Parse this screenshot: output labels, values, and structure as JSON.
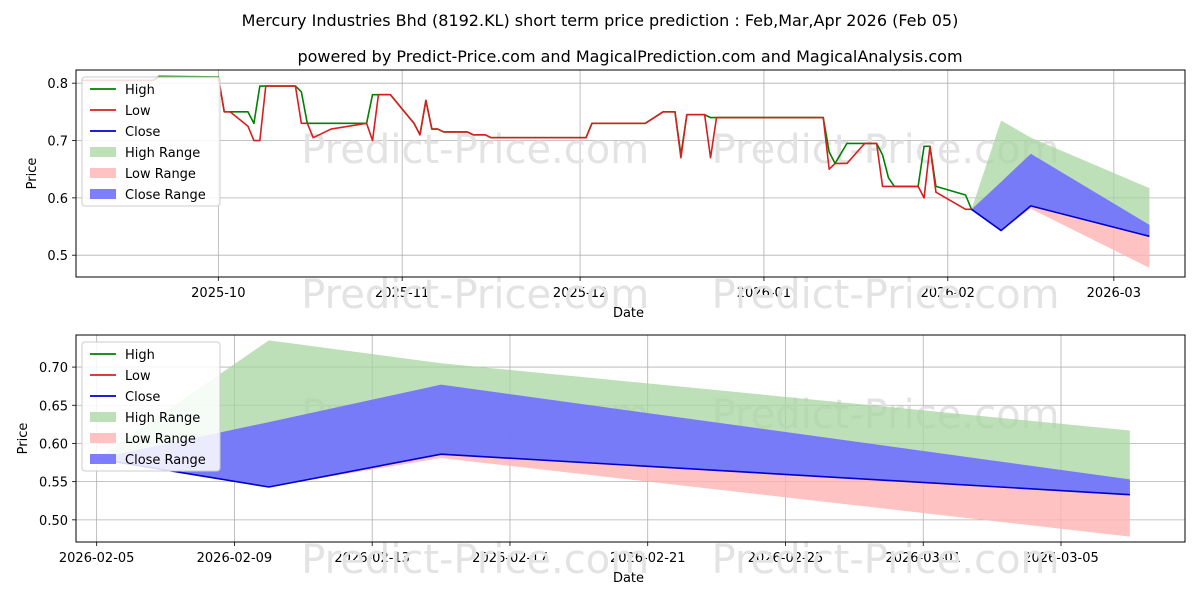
{
  "title": "Mercury Industries Bhd (8192.KL) short term price prediction : Feb,Mar,Apr 2026 (Feb 05)",
  "subtitle": "powered by Predict-Price.com and MagicalPrediction.com and MagicalAnalysis.com",
  "watermark": "Predict-Price.com",
  "colors": {
    "high": "#008000",
    "low": "#d62020",
    "close": "#0000cc",
    "high_range": "#a8d5a0",
    "low_range": "#ffb3b3",
    "close_range": "#7070ff",
    "grid": "#b0b0b0",
    "watermark": "#e3e3e3"
  },
  "chart_data": [
    {
      "type": "line",
      "title": "",
      "xlabel": "Date",
      "ylabel": "Price",
      "xlim": [
        "2025-09-07",
        "2026-03-13"
      ],
      "ylim": [
        0.462,
        0.823
      ],
      "xticks": [
        "2025-10-01",
        "2025-11-01",
        "2025-12-01",
        "2026-01-01",
        "2026-02-01",
        "2026-03-01"
      ],
      "xtick_labels": [
        "2025-10",
        "2025-11",
        "2025-12",
        "2026-01",
        "2026-02",
        "2026-03"
      ],
      "yticks": [
        0.5,
        0.6,
        0.7,
        0.8
      ],
      "ytick_labels": [
        "0.5",
        "0.6",
        "0.7",
        "0.8"
      ],
      "legend": [
        "High",
        "Low",
        "Close",
        "High Range",
        "Low Range",
        "Close Range"
      ],
      "legend_position": "upper-left",
      "series": [
        {
          "name": "High",
          "points": [
            [
              "2025-09-08",
              0.805
            ],
            [
              "2025-09-20",
              0.805
            ],
            [
              "2025-09-21",
              0.812
            ],
            [
              "2025-10-01",
              0.811
            ],
            [
              "2025-10-02",
              0.75
            ],
            [
              "2025-10-06",
              0.75
            ],
            [
              "2025-10-07",
              0.73
            ],
            [
              "2025-10-08",
              0.795
            ],
            [
              "2025-10-14",
              0.795
            ],
            [
              "2025-10-15",
              0.785
            ],
            [
              "2025-10-16",
              0.73
            ],
            [
              "2025-10-26",
              0.73
            ],
            [
              "2025-10-27",
              0.78
            ],
            [
              "2025-10-30",
              0.78
            ],
            [
              "2025-11-03",
              0.73
            ],
            [
              "2025-11-04",
              0.71
            ],
            [
              "2025-11-05",
              0.77
            ],
            [
              "2025-11-06",
              0.72
            ],
            [
              "2025-11-07",
              0.72
            ],
            [
              "2025-11-08",
              0.715
            ],
            [
              "2025-11-12",
              0.715
            ],
            [
              "2025-11-13",
              0.71
            ],
            [
              "2025-11-15",
              0.71
            ],
            [
              "2025-11-16",
              0.705
            ],
            [
              "2025-11-30",
              0.705
            ],
            [
              "2025-12-02",
              0.705
            ],
            [
              "2025-12-03",
              0.73
            ],
            [
              "2025-12-12",
              0.73
            ],
            [
              "2025-12-15",
              0.75
            ],
            [
              "2025-12-17",
              0.75
            ],
            [
              "2025-12-18",
              0.675
            ],
            [
              "2025-12-19",
              0.745
            ],
            [
              "2025-12-22",
              0.745
            ],
            [
              "2025-12-23",
              0.74
            ],
            [
              "2026-01-11",
              0.74
            ],
            [
              "2026-01-12",
              0.68
            ],
            [
              "2026-01-13",
              0.66
            ],
            [
              "2026-01-15",
              0.695
            ],
            [
              "2026-01-20",
              0.695
            ],
            [
              "2026-01-21",
              0.675
            ],
            [
              "2026-01-22",
              0.635
            ],
            [
              "2026-01-23",
              0.62
            ],
            [
              "2026-01-27",
              0.62
            ],
            [
              "2026-01-28",
              0.69
            ],
            [
              "2026-01-29",
              0.69
            ],
            [
              "2026-01-30",
              0.62
            ],
            [
              "2026-02-04",
              0.605
            ],
            [
              "2026-02-05",
              0.58
            ]
          ]
        },
        {
          "name": "Low",
          "points": [
            [
              "2025-09-08",
              0.805
            ],
            [
              "2025-09-20",
              0.805
            ],
            [
              "2025-09-21",
              0.81
            ],
            [
              "2025-10-01",
              0.81
            ],
            [
              "2025-10-02",
              0.75
            ],
            [
              "2025-10-03",
              0.75
            ],
            [
              "2025-10-06",
              0.725
            ],
            [
              "2025-10-07",
              0.7
            ],
            [
              "2025-10-08",
              0.7
            ],
            [
              "2025-10-09",
              0.795
            ],
            [
              "2025-10-14",
              0.795
            ],
            [
              "2025-10-15",
              0.73
            ],
            [
              "2025-10-16",
              0.73
            ],
            [
              "2025-10-17",
              0.705
            ],
            [
              "2025-10-20",
              0.72
            ],
            [
              "2025-10-26",
              0.73
            ],
            [
              "2025-10-27",
              0.7
            ],
            [
              "2025-10-28",
              0.78
            ],
            [
              "2025-10-30",
              0.78
            ],
            [
              "2025-11-03",
              0.73
            ],
            [
              "2025-11-04",
              0.71
            ],
            [
              "2025-11-05",
              0.77
            ],
            [
              "2025-11-06",
              0.72
            ],
            [
              "2025-11-07",
              0.72
            ],
            [
              "2025-11-08",
              0.715
            ],
            [
              "2025-11-12",
              0.715
            ],
            [
              "2025-11-13",
              0.71
            ],
            [
              "2025-11-15",
              0.71
            ],
            [
              "2025-11-16",
              0.705
            ],
            [
              "2025-11-30",
              0.705
            ],
            [
              "2025-12-02",
              0.705
            ],
            [
              "2025-12-03",
              0.73
            ],
            [
              "2025-12-12",
              0.73
            ],
            [
              "2025-12-15",
              0.75
            ],
            [
              "2025-12-17",
              0.75
            ],
            [
              "2025-12-18",
              0.67
            ],
            [
              "2025-12-19",
              0.745
            ],
            [
              "2025-12-22",
              0.745
            ],
            [
              "2025-12-23",
              0.67
            ],
            [
              "2025-12-24",
              0.74
            ],
            [
              "2026-01-11",
              0.74
            ],
            [
              "2026-01-12",
              0.65
            ],
            [
              "2026-01-13",
              0.66
            ],
            [
              "2026-01-15",
              0.66
            ],
            [
              "2026-01-18",
              0.695
            ],
            [
              "2026-01-20",
              0.695
            ],
            [
              "2026-01-21",
              0.62
            ],
            [
              "2026-01-27",
              0.62
            ],
            [
              "2026-01-28",
              0.6
            ],
            [
              "2026-01-29",
              0.69
            ],
            [
              "2026-01-30",
              0.61
            ],
            [
              "2026-02-04",
              0.58
            ],
            [
              "2026-02-05",
              0.58
            ]
          ]
        },
        {
          "name": "Close",
          "points": [
            [
              "2026-02-05",
              0.58
            ],
            [
              "2026-02-10",
              0.543
            ],
            [
              "2026-02-15",
              0.586
            ],
            [
              "2026-03-07",
              0.533
            ]
          ]
        }
      ],
      "ranges": [
        {
          "name": "High Range",
          "upper": [
            [
              "2026-02-05",
              0.58
            ],
            [
              "2026-02-10",
              0.735
            ],
            [
              "2026-02-15",
              0.705
            ],
            [
              "2026-03-07",
              0.617
            ]
          ],
          "lower": [
            [
              "2026-02-05",
              0.58
            ],
            [
              "2026-02-10",
              0.543
            ],
            [
              "2026-02-15",
              0.586
            ],
            [
              "2026-03-07",
              0.533
            ]
          ]
        },
        {
          "name": "Low Range",
          "upper": [
            [
              "2026-02-05",
              0.58
            ],
            [
              "2026-02-10",
              0.543
            ],
            [
              "2026-02-15",
              0.586
            ],
            [
              "2026-03-07",
              0.533
            ]
          ],
          "lower": [
            [
              "2026-02-05",
              0.58
            ],
            [
              "2026-02-10",
              0.543
            ],
            [
              "2026-02-15",
              0.581
            ],
            [
              "2026-03-07",
              0.478
            ]
          ]
        },
        {
          "name": "Close Range",
          "upper": [
            [
              "2026-02-05",
              0.58
            ],
            [
              "2026-02-10",
              0.628
            ],
            [
              "2026-02-15",
              0.677
            ],
            [
              "2026-03-07",
              0.553
            ]
          ],
          "lower": [
            [
              "2026-02-05",
              0.58
            ],
            [
              "2026-02-10",
              0.543
            ],
            [
              "2026-02-15",
              0.586
            ],
            [
              "2026-03-07",
              0.533
            ]
          ]
        }
      ]
    },
    {
      "type": "line",
      "title": "",
      "xlabel": "Date",
      "ylabel": "Price",
      "xlim": [
        "2026-02-04.4",
        "2026-03-08.6"
      ],
      "ylim": [
        0.471,
        0.742
      ],
      "xticks": [
        "2026-02-05",
        "2026-02-09",
        "2026-02-13",
        "2026-02-17",
        "2026-02-21",
        "2026-02-25",
        "2026-03-01",
        "2026-03-05"
      ],
      "xtick_labels": [
        "2026-02-05",
        "2026-02-09",
        "2026-02-13",
        "2026-02-17",
        "2026-02-21",
        "2026-02-25",
        "2026-03-01",
        "2026-03-05"
      ],
      "yticks": [
        0.5,
        0.55,
        0.6,
        0.65,
        0.7
      ],
      "ytick_labels": [
        "0.50",
        "0.55",
        "0.60",
        "0.65",
        "0.70"
      ],
      "legend": [
        "High",
        "Low",
        "Close",
        "High Range",
        "Low Range",
        "Close Range"
      ],
      "legend_position": "upper-left",
      "series": [
        {
          "name": "Close",
          "points": [
            [
              "2026-02-05",
              0.58
            ],
            [
              "2026-02-10",
              0.543
            ],
            [
              "2026-02-15",
              0.586
            ],
            [
              "2026-03-07",
              0.533
            ]
          ]
        }
      ],
      "ranges": [
        {
          "name": "High Range",
          "upper": [
            [
              "2026-02-05",
              0.58
            ],
            [
              "2026-02-10",
              0.735
            ],
            [
              "2026-02-15",
              0.705
            ],
            [
              "2026-03-07",
              0.617
            ]
          ],
          "lower": [
            [
              "2026-02-05",
              0.58
            ],
            [
              "2026-02-10",
              0.543
            ],
            [
              "2026-02-15",
              0.586
            ],
            [
              "2026-03-07",
              0.533
            ]
          ]
        },
        {
          "name": "Low Range",
          "upper": [
            [
              "2026-02-05",
              0.58
            ],
            [
              "2026-02-10",
              0.543
            ],
            [
              "2026-02-15",
              0.586
            ],
            [
              "2026-03-07",
              0.533
            ]
          ],
          "lower": [
            [
              "2026-02-05",
              0.58
            ],
            [
              "2026-02-10",
              0.543
            ],
            [
              "2026-02-15",
              0.581
            ],
            [
              "2026-03-07",
              0.478
            ]
          ]
        },
        {
          "name": "Close Range",
          "upper": [
            [
              "2026-02-05",
              0.58
            ],
            [
              "2026-02-10",
              0.628
            ],
            [
              "2026-02-15",
              0.677
            ],
            [
              "2026-03-07",
              0.553
            ]
          ],
          "lower": [
            [
              "2026-02-05",
              0.58
            ],
            [
              "2026-02-10",
              0.543
            ],
            [
              "2026-02-15",
              0.586
            ],
            [
              "2026-03-07",
              0.533
            ]
          ]
        }
      ]
    }
  ]
}
